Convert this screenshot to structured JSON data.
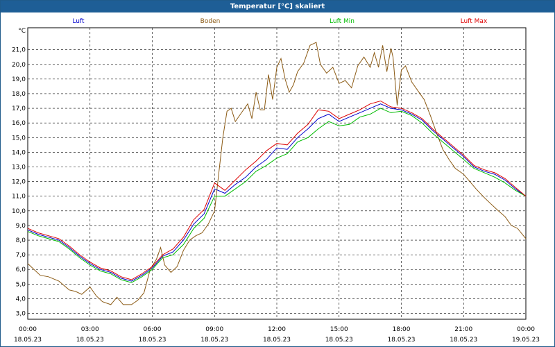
{
  "window": {
    "title": "Temperatur [°C] skaliert"
  },
  "chart_data": {
    "type": "line",
    "title": "Temperatur [°C] skaliert",
    "ylabel": "°C",
    "ylim": [
      2.6,
      22.5
    ],
    "xlim": [
      0,
      24
    ],
    "grid": true,
    "yticks": [
      3.0,
      4.0,
      5.0,
      6.0,
      7.0,
      8.0,
      9.0,
      10.0,
      11.0,
      12.0,
      13.0,
      14.0,
      15.0,
      16.0,
      17.0,
      18.0,
      19.0,
      20.0,
      21.0
    ],
    "ytick_labels": [
      "3,0",
      "4,0",
      "5,0",
      "6,0",
      "7,0",
      "8,0",
      "9,0",
      "10,0",
      "11,0",
      "12,0",
      "13,0",
      "14,0",
      "15,0",
      "16,0",
      "17,0",
      "18,0",
      "19,0",
      "20,0",
      "21,0"
    ],
    "xticks": [
      {
        "x": 0,
        "time": "00:00",
        "date": "18.05.23"
      },
      {
        "x": 3,
        "time": "03:00",
        "date": "18.05.23"
      },
      {
        "x": 6,
        "time": "06:00",
        "date": "18.05.23"
      },
      {
        "x": 9,
        "time": "09:00",
        "date": "18.05.23"
      },
      {
        "x": 12,
        "time": "12:00",
        "date": "18.05.23"
      },
      {
        "x": 15,
        "time": "15:00",
        "date": "18.05.23"
      },
      {
        "x": 18,
        "time": "18:00",
        "date": "18.05.23"
      },
      {
        "x": 21,
        "time": "21:00",
        "date": "18.05.23"
      },
      {
        "x": 24,
        "time": "00:00",
        "date": "19.05.23"
      }
    ],
    "series": [
      {
        "name": "Luft",
        "color": "#0000cc",
        "points": [
          [
            0,
            8.7
          ],
          [
            0.5,
            8.4
          ],
          [
            1,
            8.2
          ],
          [
            1.5,
            8.0
          ],
          [
            2,
            7.5
          ],
          [
            2.5,
            6.9
          ],
          [
            3,
            6.4
          ],
          [
            3.5,
            6.0
          ],
          [
            4,
            5.8
          ],
          [
            4.5,
            5.4
          ],
          [
            5,
            5.2
          ],
          [
            5.5,
            5.6
          ],
          [
            6,
            6.1
          ],
          [
            6.5,
            6.9
          ],
          [
            7,
            7.2
          ],
          [
            7.5,
            8.0
          ],
          [
            8,
            9.1
          ],
          [
            8.5,
            9.8
          ],
          [
            9,
            11.5
          ],
          [
            9.5,
            11.2
          ],
          [
            10,
            11.8
          ],
          [
            10.5,
            12.3
          ],
          [
            11,
            13.0
          ],
          [
            11.5,
            13.5
          ],
          [
            12,
            14.3
          ],
          [
            12.5,
            14.2
          ],
          [
            13,
            15.0
          ],
          [
            13.5,
            15.6
          ],
          [
            14,
            16.3
          ],
          [
            14.5,
            16.6
          ],
          [
            15,
            16.1
          ],
          [
            15.5,
            16.4
          ],
          [
            16,
            16.7
          ],
          [
            16.5,
            17.0
          ],
          [
            17,
            17.3
          ],
          [
            17.5,
            17.0
          ],
          [
            18,
            16.9
          ],
          [
            18.5,
            16.6
          ],
          [
            19,
            16.2
          ],
          [
            19.5,
            15.5
          ],
          [
            20,
            14.9
          ],
          [
            20.5,
            14.3
          ],
          [
            21,
            13.7
          ],
          [
            21.5,
            13.0
          ],
          [
            22,
            12.7
          ],
          [
            22.5,
            12.5
          ],
          [
            23,
            12.1
          ],
          [
            23.5,
            11.5
          ],
          [
            24,
            11.0
          ]
        ]
      },
      {
        "name": "Boden",
        "color": "#8b5a14",
        "points": [
          [
            0,
            6.4
          ],
          [
            0.3,
            6.0
          ],
          [
            0.6,
            5.6
          ],
          [
            1,
            5.5
          ],
          [
            1.5,
            5.2
          ],
          [
            2,
            4.6
          ],
          [
            2.3,
            4.5
          ],
          [
            2.6,
            4.3
          ],
          [
            3,
            4.8
          ],
          [
            3.3,
            4.2
          ],
          [
            3.6,
            3.8
          ],
          [
            4,
            3.6
          ],
          [
            4.3,
            4.1
          ],
          [
            4.6,
            3.6
          ],
          [
            5,
            3.6
          ],
          [
            5.3,
            3.9
          ],
          [
            5.6,
            4.4
          ],
          [
            5.9,
            6.0
          ],
          [
            6.2,
            6.7
          ],
          [
            6.4,
            7.5
          ],
          [
            6.6,
            6.3
          ],
          [
            6.9,
            5.8
          ],
          [
            7.2,
            6.2
          ],
          [
            7.5,
            7.3
          ],
          [
            7.8,
            8.0
          ],
          [
            8.1,
            8.3
          ],
          [
            8.4,
            8.5
          ],
          [
            8.7,
            9.1
          ],
          [
            9.0,
            10.0
          ],
          [
            9.2,
            12.5
          ],
          [
            9.4,
            15.0
          ],
          [
            9.6,
            16.8
          ],
          [
            9.8,
            17.0
          ],
          [
            10,
            16.1
          ],
          [
            10.3,
            16.7
          ],
          [
            10.6,
            17.3
          ],
          [
            10.8,
            16.3
          ],
          [
            11,
            18.1
          ],
          [
            11.2,
            16.9
          ],
          [
            11.4,
            16.9
          ],
          [
            11.6,
            19.3
          ],
          [
            11.8,
            17.6
          ],
          [
            12,
            19.8
          ],
          [
            12.2,
            20.4
          ],
          [
            12.4,
            19.0
          ],
          [
            12.6,
            18.1
          ],
          [
            12.8,
            18.6
          ],
          [
            13,
            19.5
          ],
          [
            13.3,
            20.1
          ],
          [
            13.6,
            21.3
          ],
          [
            13.9,
            21.5
          ],
          [
            14.1,
            20.0
          ],
          [
            14.4,
            19.4
          ],
          [
            14.7,
            19.8
          ],
          [
            15,
            18.7
          ],
          [
            15.3,
            18.9
          ],
          [
            15.6,
            18.4
          ],
          [
            15.9,
            19.9
          ],
          [
            16.2,
            20.5
          ],
          [
            16.5,
            19.8
          ],
          [
            16.7,
            20.8
          ],
          [
            16.9,
            19.8
          ],
          [
            17.1,
            21.3
          ],
          [
            17.3,
            19.5
          ],
          [
            17.5,
            21.1
          ],
          [
            17.6,
            20.5
          ],
          [
            17.8,
            17.2
          ],
          [
            18,
            19.6
          ],
          [
            18.2,
            19.9
          ],
          [
            18.5,
            18.8
          ],
          [
            18.8,
            18.2
          ],
          [
            19.1,
            17.6
          ],
          [
            19.4,
            16.5
          ],
          [
            19.7,
            15.3
          ],
          [
            20,
            14.2
          ],
          [
            20.3,
            13.5
          ],
          [
            20.6,
            12.9
          ],
          [
            21,
            12.5
          ],
          [
            21.3,
            12.0
          ],
          [
            21.6,
            11.5
          ],
          [
            22,
            10.9
          ],
          [
            22.3,
            10.5
          ],
          [
            22.6,
            10.1
          ],
          [
            23,
            9.6
          ],
          [
            23.3,
            9.0
          ],
          [
            23.6,
            8.8
          ],
          [
            24,
            8.1
          ]
        ]
      },
      {
        "name": "Luft Min",
        "color": "#00bb00",
        "points": [
          [
            0,
            8.6
          ],
          [
            0.5,
            8.3
          ],
          [
            1,
            8.1
          ],
          [
            1.5,
            7.9
          ],
          [
            2,
            7.4
          ],
          [
            2.5,
            6.8
          ],
          [
            3,
            6.3
          ],
          [
            3.5,
            5.9
          ],
          [
            4,
            5.7
          ],
          [
            4.5,
            5.3
          ],
          [
            5,
            5.1
          ],
          [
            5.5,
            5.5
          ],
          [
            6,
            6.0
          ],
          [
            6.5,
            6.8
          ],
          [
            7,
            7.0
          ],
          [
            7.5,
            7.7
          ],
          [
            8,
            8.8
          ],
          [
            8.5,
            9.5
          ],
          [
            9,
            11.0
          ],
          [
            9.5,
            11.0
          ],
          [
            10,
            11.5
          ],
          [
            10.5,
            12.0
          ],
          [
            11,
            12.7
          ],
          [
            11.5,
            13.1
          ],
          [
            12,
            13.6
          ],
          [
            12.5,
            13.9
          ],
          [
            13,
            14.7
          ],
          [
            13.5,
            15.0
          ],
          [
            14,
            15.6
          ],
          [
            14.5,
            16.1
          ],
          [
            15,
            15.8
          ],
          [
            15.5,
            15.9
          ],
          [
            16,
            16.4
          ],
          [
            16.5,
            16.6
          ],
          [
            17,
            17.0
          ],
          [
            17.5,
            16.7
          ],
          [
            18,
            16.8
          ],
          [
            18.5,
            16.5
          ],
          [
            19,
            16.0
          ],
          [
            19.5,
            15.3
          ],
          [
            20,
            14.7
          ],
          [
            20.5,
            14.1
          ],
          [
            21,
            13.5
          ],
          [
            21.5,
            12.9
          ],
          [
            22,
            12.6
          ],
          [
            22.5,
            12.3
          ],
          [
            23,
            11.9
          ],
          [
            23.5,
            11.4
          ],
          [
            24,
            11.0
          ]
        ]
      },
      {
        "name": "Luft Max",
        "color": "#dd0000",
        "points": [
          [
            0,
            8.8
          ],
          [
            0.5,
            8.5
          ],
          [
            1,
            8.3
          ],
          [
            1.5,
            8.1
          ],
          [
            2,
            7.6
          ],
          [
            2.5,
            7.0
          ],
          [
            3,
            6.5
          ],
          [
            3.5,
            6.1
          ],
          [
            4,
            5.9
          ],
          [
            4.5,
            5.5
          ],
          [
            5,
            5.3
          ],
          [
            5.5,
            5.7
          ],
          [
            6,
            6.2
          ],
          [
            6.5,
            7.0
          ],
          [
            7,
            7.4
          ],
          [
            7.5,
            8.2
          ],
          [
            8,
            9.4
          ],
          [
            8.5,
            10.1
          ],
          [
            9,
            11.9
          ],
          [
            9.5,
            11.4
          ],
          [
            10,
            12.1
          ],
          [
            10.5,
            12.8
          ],
          [
            11,
            13.4
          ],
          [
            11.5,
            14.1
          ],
          [
            12,
            14.6
          ],
          [
            12.5,
            14.5
          ],
          [
            13,
            15.3
          ],
          [
            13.5,
            15.9
          ],
          [
            14,
            16.9
          ],
          [
            14.5,
            16.8
          ],
          [
            15,
            16.3
          ],
          [
            15.5,
            16.6
          ],
          [
            16,
            16.9
          ],
          [
            16.5,
            17.3
          ],
          [
            17,
            17.5
          ],
          [
            17.5,
            17.1
          ],
          [
            18,
            17.0
          ],
          [
            18.5,
            16.7
          ],
          [
            19,
            16.3
          ],
          [
            19.5,
            15.6
          ],
          [
            20,
            15.0
          ],
          [
            20.5,
            14.4
          ],
          [
            21,
            13.8
          ],
          [
            21.5,
            13.1
          ],
          [
            22,
            12.8
          ],
          [
            22.5,
            12.6
          ],
          [
            23,
            12.2
          ],
          [
            23.5,
            11.6
          ],
          [
            24,
            11.0
          ]
        ]
      }
    ]
  }
}
